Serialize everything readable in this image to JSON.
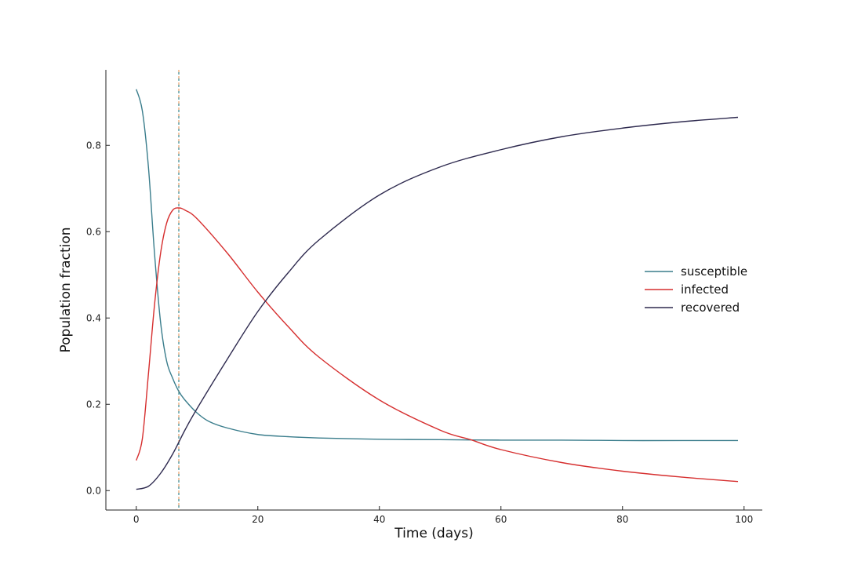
{
  "chart_data": {
    "type": "line",
    "title": "",
    "xlabel": "Time (days)",
    "ylabel": "Population fraction",
    "xlim": [
      -5,
      103
    ],
    "ylim": [
      -0.045,
      0.975
    ],
    "xticks": [
      0,
      20,
      40,
      60,
      80,
      100
    ],
    "yticks": [
      0.0,
      0.2,
      0.4,
      0.6,
      0.8
    ],
    "xtick_labels": [
      "0",
      "20",
      "40",
      "60",
      "80",
      "100"
    ],
    "ytick_labels": [
      "0.0",
      "0.2",
      "0.4",
      "0.6",
      "0.8"
    ],
    "grid": false,
    "legend": "right-center",
    "vline": {
      "x": 7,
      "colors": [
        "#e8a06a",
        "#3a8f9a"
      ]
    },
    "series": [
      {
        "name": "susceptible",
        "color": "#3a7d8c",
        "x": [
          0,
          1,
          2,
          3,
          4,
          5,
          6,
          7,
          8,
          10,
          12,
          15,
          20,
          25,
          30,
          40,
          50,
          60,
          70,
          80,
          90,
          99
        ],
        "y": [
          0.93,
          0.88,
          0.75,
          0.55,
          0.39,
          0.3,
          0.26,
          0.23,
          0.21,
          0.18,
          0.16,
          0.145,
          0.13,
          0.125,
          0.122,
          0.119,
          0.118,
          0.117,
          0.117,
          0.116,
          0.116,
          0.116
        ]
      },
      {
        "name": "infected",
        "color": "#d62f2f",
        "x": [
          0,
          1,
          2,
          3,
          4,
          5,
          6,
          7,
          8,
          10,
          15,
          20,
          25,
          30,
          40,
          50,
          55,
          60,
          70,
          80,
          90,
          99
        ],
        "y": [
          0.07,
          0.12,
          0.27,
          0.43,
          0.55,
          0.62,
          0.65,
          0.655,
          0.65,
          0.63,
          0.55,
          0.46,
          0.38,
          0.31,
          0.21,
          0.14,
          0.118,
          0.095,
          0.065,
          0.045,
          0.031,
          0.021
        ]
      },
      {
        "name": "recovered",
        "color": "#2e2a4f",
        "x": [
          0,
          2,
          4,
          6,
          8,
          10,
          15,
          20,
          25,
          30,
          40,
          50,
          60,
          70,
          80,
          90,
          99
        ],
        "y": [
          0.003,
          0.01,
          0.04,
          0.085,
          0.14,
          0.19,
          0.305,
          0.415,
          0.505,
          0.58,
          0.685,
          0.75,
          0.79,
          0.82,
          0.84,
          0.855,
          0.865
        ]
      }
    ]
  }
}
